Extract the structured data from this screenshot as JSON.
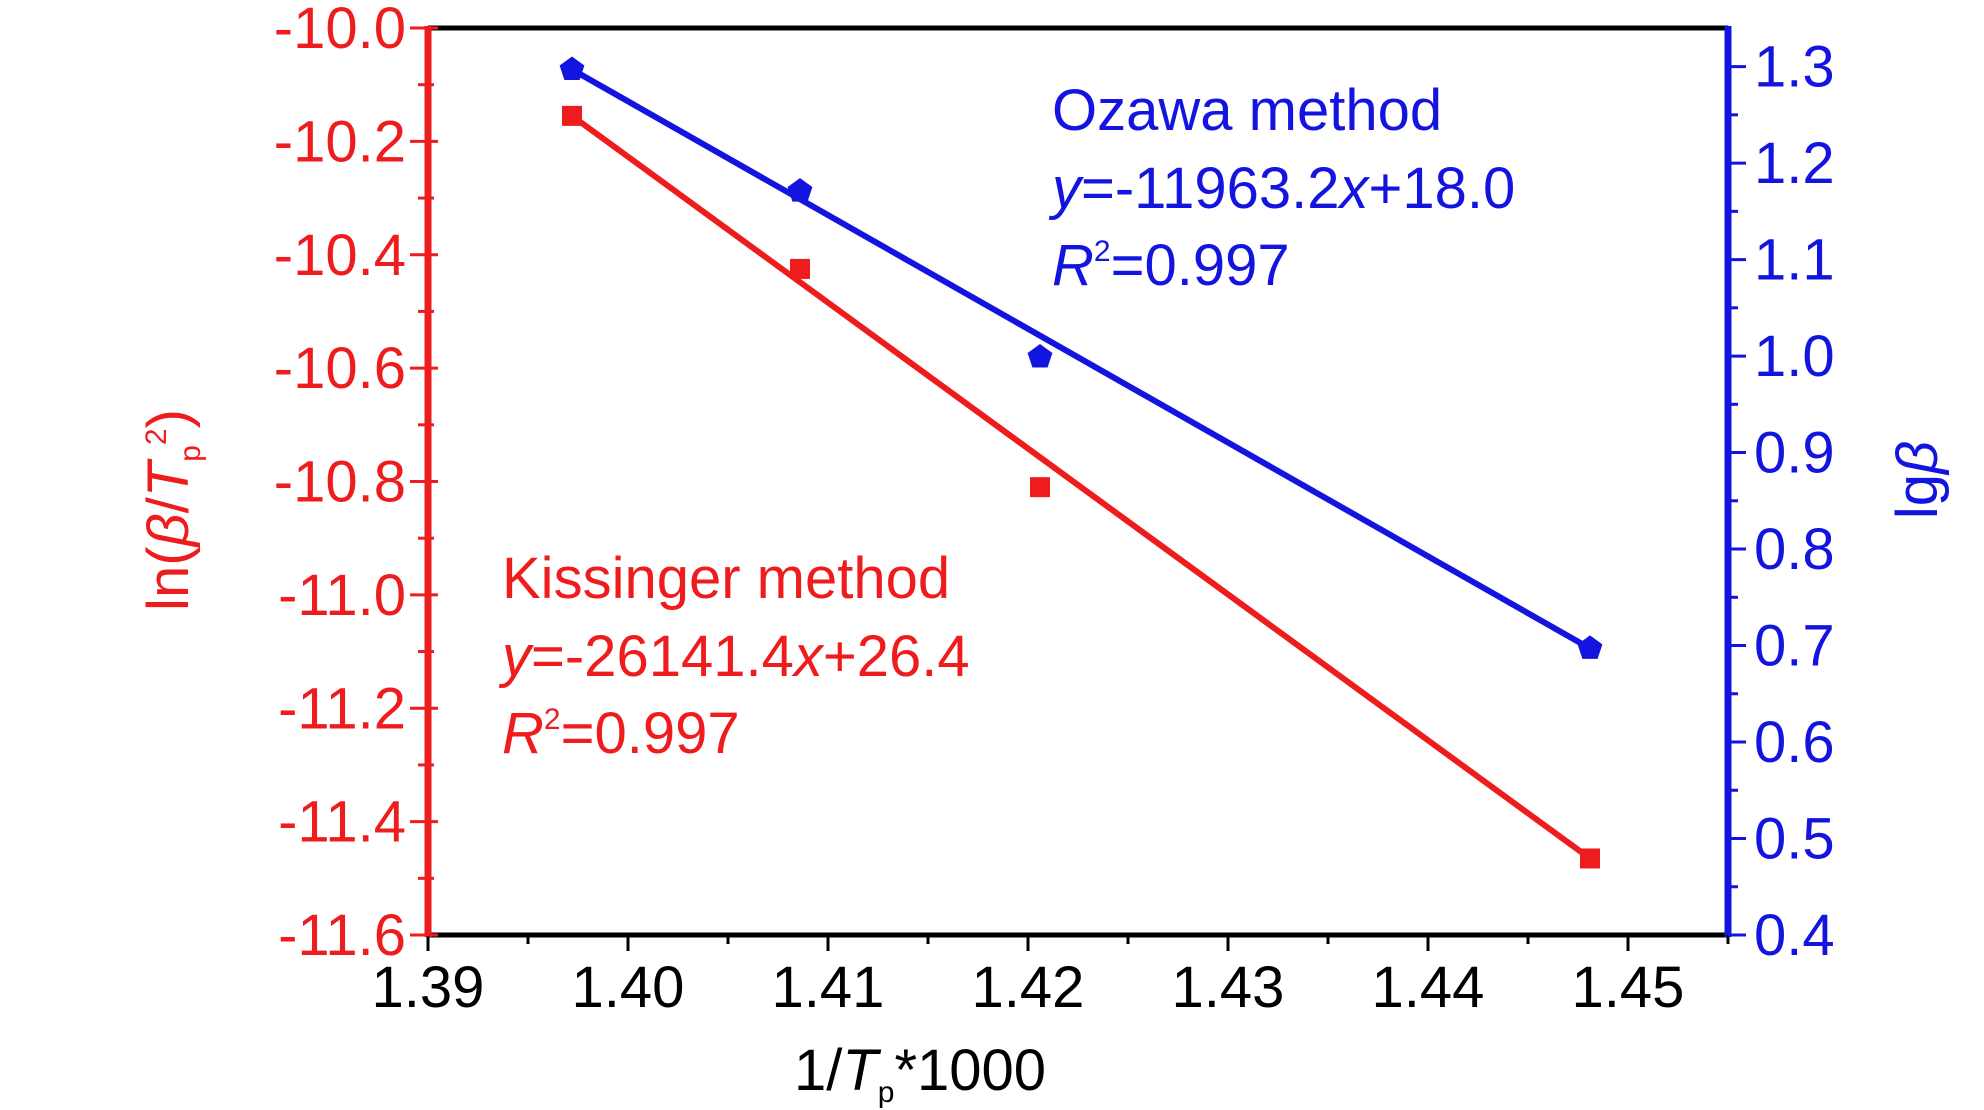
{
  "colors": {
    "left": "#ee1c1c",
    "right": "#1414e0",
    "frame": "#000000"
  },
  "chart_data": {
    "type": "scatter",
    "xlabel": {
      "pre": "1/",
      "var": "T",
      "sub": "p",
      "post": "*1000"
    },
    "ylabel_left": {
      "pre": "ln(",
      "beta": "β",
      "slash": "/",
      "var": "T",
      "sub": "p",
      "sup": "2",
      "post": ")"
    },
    "ylabel_right": {
      "pre": "lg",
      "beta": "β"
    },
    "xlim": [
      1.39,
      1.455
    ],
    "ylim_left": [
      -11.6,
      -10.0
    ],
    "ylim_right": [
      0.4,
      1.34
    ],
    "xticks": [
      "1.39",
      "1.40",
      "1.41",
      "1.42",
      "1.43",
      "1.44",
      "1.45"
    ],
    "yticks_left": [
      "-10.0",
      "-10.2",
      "-10.4",
      "-10.6",
      "-10.8",
      "-11.0",
      "-11.2",
      "-11.4",
      "-11.6"
    ],
    "yticks_right": [
      "1.3",
      "1.2",
      "1.1",
      "1.0",
      "0.9",
      "0.8",
      "0.7",
      "0.6",
      "0.5",
      "0.4"
    ],
    "grid": false,
    "series": [
      {
        "name": "Kissinger method",
        "axis": "left",
        "marker": "square",
        "x": [
          1.3972,
          1.4086,
          1.4206,
          1.4481
        ],
        "y": [
          -10.155,
          -10.425,
          -10.81,
          -11.465
        ],
        "fit_line": {
          "x": [
            1.3972,
            1.4481
          ],
          "y": [
            -10.155,
            -11.465
          ]
        },
        "equation": {
          "y": "y",
          "eq": "=-26141.4",
          "x": "x",
          "rest": "+26.4"
        },
        "r2": {
          "R": "R",
          "sup": "2",
          "rest": "=0.997"
        }
      },
      {
        "name": "Ozawa method",
        "axis": "right",
        "marker": "pentagon",
        "x": [
          1.3972,
          1.4086,
          1.4206,
          1.4481
        ],
        "y": [
          1.297,
          1.171,
          0.999,
          0.697
        ],
        "fit_line": {
          "x": [
            1.3972,
            1.4481
          ],
          "y": [
            1.297,
            0.697
          ]
        },
        "equation": {
          "y": "y",
          "eq": "=-11963.2",
          "x": "x",
          "rest": "+18.0"
        },
        "r2": {
          "R": "R",
          "sup": "2",
          "rest": "=0.997"
        }
      }
    ]
  }
}
